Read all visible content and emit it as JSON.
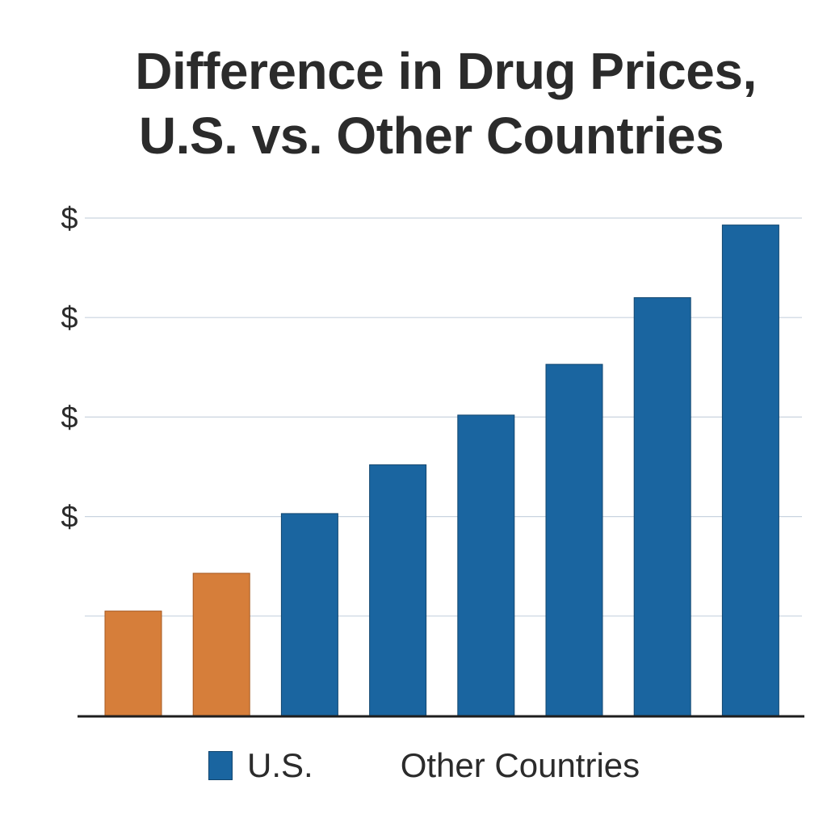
{
  "chart_data": {
    "type": "bar",
    "title_lines": [
      "Difference in Drug Prices,",
      "U.S. vs. Other Countries"
    ],
    "xlabel": "",
    "ylabel": "",
    "ytick_labels": [
      "$",
      "$",
      "$",
      "$",
      ""
    ],
    "ytick_values": [
      5,
      4,
      3,
      2,
      1
    ],
    "ylim": [
      0,
      5
    ],
    "grid": true,
    "values": [
      1.05,
      1.43,
      2.03,
      2.52,
      3.02,
      3.53,
      4.2,
      4.93
    ],
    "bar_series": [
      "Other Countries",
      "Other Countries",
      "U.S.",
      "U.S.",
      "U.S.",
      "U.S.",
      "U.S.",
      "U.S."
    ],
    "legend": [
      {
        "name": "U.S.",
        "color": "#1a65a0",
        "swatch": true
      },
      {
        "name": "Other Countries",
        "color": "#d67e3a",
        "swatch": false
      }
    ],
    "legend_position": "bottom",
    "colors": {
      "us": "#1a65a0",
      "other": "#d67e3a",
      "grid": "#c9d3df",
      "axis": "#1e1e1e"
    }
  }
}
